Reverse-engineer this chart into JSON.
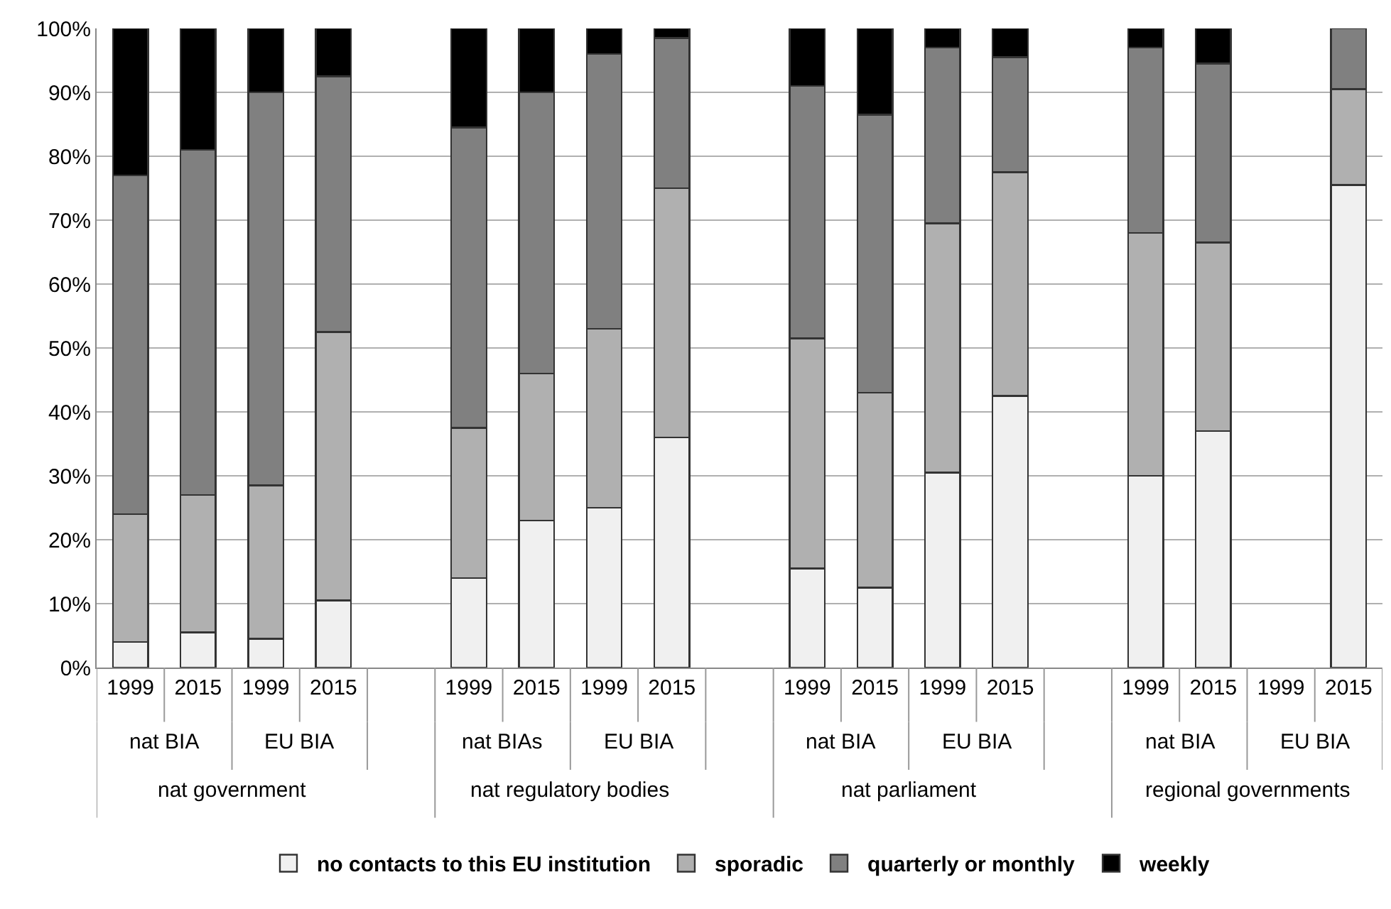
{
  "chart_data": {
    "type": "bar",
    "stacked": true,
    "categories": [
      "1999",
      "2015",
      "1999",
      "2015",
      null,
      "1999",
      "2015",
      "1999",
      "2015",
      null,
      "1999",
      "2015",
      "1999",
      "2015",
      null,
      "1999",
      "2015",
      "1999",
      "2015"
    ],
    "series": [
      {
        "name": "no contacts to this EU institution",
        "color": "#f0f0f0",
        "values": [
          4,
          5.5,
          4.5,
          10.5,
          null,
          14,
          23,
          25,
          36,
          null,
          15.5,
          12.5,
          30.5,
          42.5,
          null,
          30,
          37,
          null,
          75.5
        ]
      },
      {
        "name": "sporadic",
        "color": "#b0b0b0",
        "values": [
          20,
          21.5,
          24,
          42,
          null,
          23.5,
          23,
          28,
          39,
          null,
          36,
          30.5,
          39,
          35,
          null,
          38,
          29.5,
          null,
          15
        ]
      },
      {
        "name": "quarterly or monthly",
        "color": "#808080",
        "values": [
          53,
          54,
          61.5,
          40,
          null,
          47,
          44,
          43,
          23.5,
          null,
          39.5,
          43.5,
          27.5,
          18,
          null,
          29,
          28,
          null,
          9.5
        ]
      },
      {
        "name": "weekly",
        "color": "#000000",
        "values": [
          23,
          19,
          10,
          7.5,
          null,
          15.5,
          10,
          4,
          1.5,
          null,
          9,
          13.5,
          3,
          4.5,
          null,
          3,
          5.5,
          null,
          null
        ]
      }
    ],
    "annotations": [
      "nat BIA",
      "EU BIA",
      "nat BIAs",
      "EU BIA",
      "nat BIA",
      "EU BIA",
      "nat BIA",
      "EU BIA",
      "nat government",
      "nat regulatory bodies",
      "nat parliament",
      "regional governments"
    ],
    "ylim": [
      0,
      100
    ],
    "yticks": [
      {
        "value": 0,
        "label": "0%"
      },
      {
        "value": 10,
        "label": "10%"
      },
      {
        "value": 20,
        "label": "20%"
      },
      {
        "value": 30,
        "label": "30%"
      },
      {
        "value": 40,
        "label": "40%"
      },
      {
        "value": 50,
        "label": "50%"
      },
      {
        "value": 60,
        "label": "60%"
      },
      {
        "value": 70,
        "label": "70%"
      },
      {
        "value": 80,
        "label": "80%"
      },
      {
        "value": 90,
        "label": "90%"
      },
      {
        "value": 100,
        "label": "100%"
      }
    ],
    "grid": "y",
    "legend": "bottom"
  }
}
